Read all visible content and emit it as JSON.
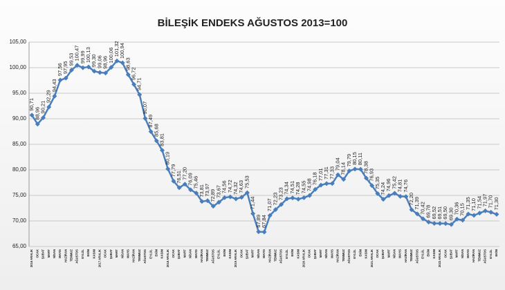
{
  "chart_data": {
    "type": "line",
    "title": "BİLEŞİK ENDEKS AĞUSTOS 2013=100",
    "categories": [
      "2016 ARALIK",
      "OCAK",
      "ŞUBAT",
      "MART",
      "NİSAN",
      "MAYIS",
      "HAZİRAN",
      "TEMMUZ",
      "AĞUSTOS",
      "EYLÜL",
      "EKİM",
      "KASIM",
      "2017 ARALIK",
      "OCAK",
      "ŞUBAT",
      "MART",
      "NİSAN",
      "MAYIS",
      "HAZİRAN",
      "TEMMUZ",
      "AĞUSTOS",
      "EYLÜL",
      "EKİM",
      "KASIM",
      "2018 ARALIK",
      "OCAK",
      "ŞUBAT",
      "MART",
      "NİSAN",
      "MAYIS",
      "HAZİRAN",
      "TEMMUZ",
      "AĞUSTOS",
      "EYLÜL",
      "EKİM",
      "KASIM",
      "2019 ARALIK",
      "OCAK",
      "ŞUBAT",
      "MART",
      "NİSAN",
      "MAYIS",
      "HAZİRAN",
      "TEMMUZ",
      "AĞUSTOS",
      "EYLÜL",
      "EKİM",
      "KASIM",
      "2020 ARALIK",
      "OCAK",
      "ŞUBAT",
      "MART",
      "NİSAN",
      "MAYIS",
      "HAZİRAN",
      "TEMMUZ",
      "AĞUSTOS",
      "EYLÜL",
      "EKİM",
      "KASIM",
      "2021 ARALIK",
      "OCAK",
      "ŞUBAT",
      "MART",
      "NİSAN",
      "MAYIS",
      "HAZİRAN",
      "TEMMUZ",
      "AĞUSTOS",
      "EYLÜL",
      "EKİM",
      "KASIM",
      "2022 ARALIK",
      "OCAK",
      "ŞUBAT",
      "MART",
      "NİSAN",
      "MAYIS",
      "HAZİRAN",
      "TEMMUZ",
      "AĞUSTOS",
      "EYLÜL",
      "EKİM"
    ],
    "series": [
      {
        "name": "BİLEŞİK ENDEKS",
        "color": "#4a7ebb",
        "values": [
          90.71,
          88.96,
          90.21,
          92.29,
          94.43,
          97.56,
          97.95,
          99.53,
          100.47,
          99.99,
          100.13,
          99.3,
          99.06,
          98.96,
          100.06,
          101.32,
          100.94,
          98.63,
          96.72,
          94.71,
          90.07,
          87.49,
          85.68,
          83.81,
          80.19,
          77.79,
          76.51,
          77.2,
          76.09,
          75.46,
          73.81,
          73.97,
          72.89,
          73.67,
          74.56,
          74.72,
          74.32,
          74.63,
          75.53,
          71.44,
          67.89,
          67.84,
          71.07,
          72.23,
          73.23,
          74.34,
          74.51,
          74.28,
          74.55,
          74.98,
          76.18,
          77.01,
          77.31,
          77.33,
          79.04,
          78.14,
          79.79,
          80.15,
          80.11,
          78.38,
          76.93,
          75.35,
          74.24,
          74.96,
          75.42,
          74.81,
          74.76,
          72.2,
          71.39,
          70.42,
          69.78,
          69.52,
          69.51,
          69.5,
          69.3,
          70.36,
          70.15,
          71.35,
          71.1,
          71.54,
          71.97,
          71.7,
          71.3
        ],
        "value_labels": [
          "90,71",
          "88,96",
          "90,21",
          "92,29",
          "94,43",
          "97,56",
          "97,95",
          "99,53",
          "100,47",
          "99,99",
          "100,13",
          "99,30",
          "99,06",
          "98,96",
          "100,06",
          "101,32",
          "100,94",
          "98,63",
          "96,72",
          "94,71",
          "90,07",
          "87,49",
          "85,68",
          "83,81",
          "80,19",
          "77,79",
          "76,51",
          "77,20",
          "76,09",
          "75,46",
          "73,81",
          "73,97",
          "72,89",
          "73,67",
          "74,56",
          "74,72",
          "74,32",
          "74,63",
          "75,53",
          "71,44",
          "67,89",
          "67,84",
          "71,07",
          "72,23",
          "73,23",
          "74,34",
          "74,51",
          "74,28",
          "74,55",
          "74,98",
          "76,18",
          "77,01",
          "77,31",
          "77,33",
          "79,04",
          "78,14",
          "79,79",
          "80,15",
          "80,11",
          "78,38",
          "76,93",
          "75,35",
          "74,24",
          "74,96",
          "75,42",
          "74,81",
          "74,76",
          "72,20",
          "71,39",
          "70,42",
          "69,78",
          "69,52",
          "69,51",
          "69,50",
          "69,30",
          "70,36",
          "70,15",
          "71,35",
          "71,10",
          "71,54",
          "71,97",
          "71,70",
          "71,30"
        ]
      }
    ],
    "ylim": [
      65,
      105
    ],
    "yticks": [
      {
        "value": 65,
        "label": "65,00"
      },
      {
        "value": 70,
        "label": "70,00"
      },
      {
        "value": 75,
        "label": "75,00"
      },
      {
        "value": 80,
        "label": "80,00"
      },
      {
        "value": 85,
        "label": "85,00"
      },
      {
        "value": 90,
        "label": "90,00"
      },
      {
        "value": 95,
        "label": "95,00"
      },
      {
        "value": 100,
        "label": "100,00"
      },
      {
        "value": 105,
        "label": "105,00"
      }
    ],
    "grid": true
  }
}
